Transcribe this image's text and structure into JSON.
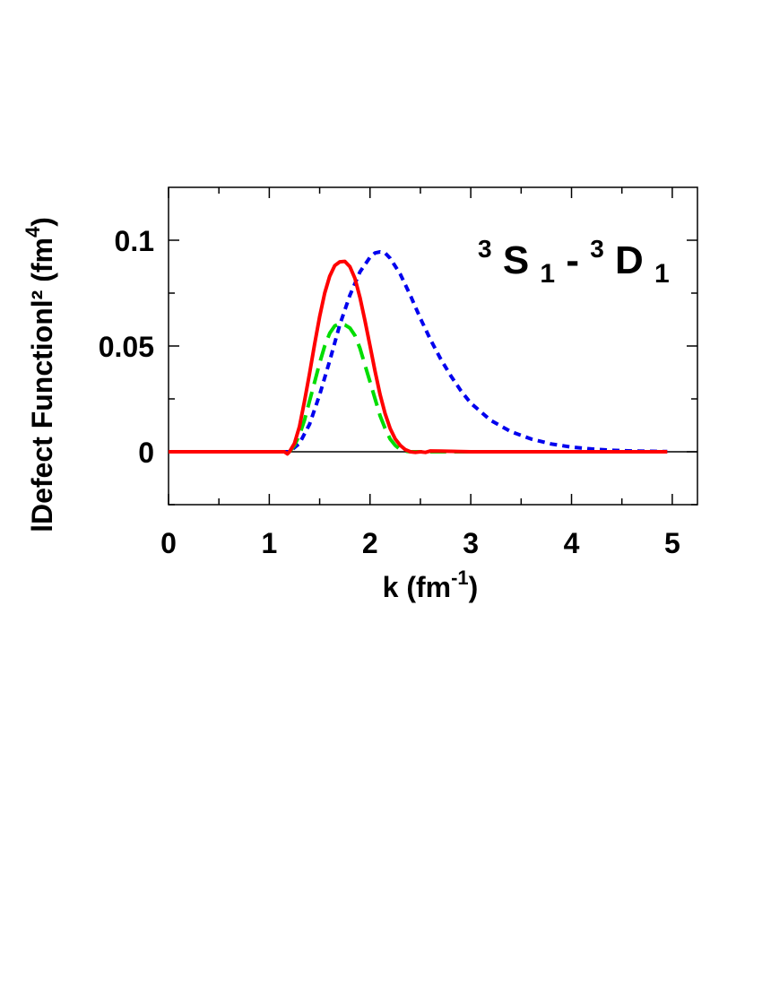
{
  "chart_data": {
    "type": "line",
    "annotation": {
      "parts": [
        {
          "text": "3",
          "sup": true
        },
        {
          "text": "S",
          "sup": false
        },
        {
          "text": "1",
          "sub": true
        },
        {
          "text": "-",
          "sup": false
        },
        {
          "text": "3",
          "sup": true
        },
        {
          "text": "D",
          "sup": false
        },
        {
          "text": "1",
          "sub": true
        }
      ]
    },
    "xlabel": {
      "main": "k (fm",
      "sup": "-1",
      "tail": ")"
    },
    "ylabel": {
      "main": "lDefect Functionl² (fm",
      "sup": "4",
      "tail": ")"
    },
    "xlim": [
      0,
      5.25
    ],
    "ylim": [
      -0.025,
      0.125
    ],
    "xticks": [
      0,
      1,
      2,
      3,
      4,
      5
    ],
    "xtick_labels": [
      "0",
      "1",
      "2",
      "3",
      "4",
      "5"
    ],
    "yticks": [
      0,
      0.05,
      0.1
    ],
    "ytick_labels": [
      "0",
      "0.05",
      "0.1"
    ],
    "zero_line": true,
    "grid": false,
    "series": [
      {
        "color": "#ff0000",
        "style": "solid",
        "x": [
          0,
          1.0,
          1.1,
          1.15,
          1.18,
          1.2,
          1.25,
          1.3,
          1.35,
          1.4,
          1.45,
          1.5,
          1.55,
          1.6,
          1.65,
          1.7,
          1.75,
          1.8,
          1.85,
          1.9,
          1.95,
          2.0,
          2.05,
          2.1,
          2.15,
          2.2,
          2.25,
          2.3,
          2.35,
          2.4,
          2.45,
          2.5,
          2.55,
          2.6,
          2.7,
          3.0,
          4.0,
          4.95
        ],
        "y": [
          0,
          0,
          0,
          0,
          -0.001,
          0.0,
          0.004,
          0.012,
          0.024,
          0.037,
          0.051,
          0.064,
          0.075,
          0.083,
          0.088,
          0.0898,
          0.09,
          0.0875,
          0.082,
          0.073,
          0.062,
          0.05,
          0.038,
          0.027,
          0.018,
          0.011,
          0.006,
          0.003,
          0.001,
          0.0,
          -0.0003,
          0.0,
          -0.0003,
          0.0004,
          0.0003,
          0,
          0,
          0
        ]
      },
      {
        "color": "#00dd00",
        "style": "long-dash",
        "x": [
          0,
          1.0,
          1.2,
          1.25,
          1.3,
          1.35,
          1.4,
          1.45,
          1.5,
          1.55,
          1.6,
          1.65,
          1.7,
          1.75,
          1.8,
          1.85,
          1.9,
          1.95,
          2.0,
          2.05,
          2.1,
          2.15,
          2.2,
          2.25,
          2.3,
          2.35,
          2.4,
          2.5,
          3.0,
          4.0,
          4.95
        ],
        "y": [
          0,
          0,
          0,
          0.003,
          0.008,
          0.015,
          0.024,
          0.033,
          0.042,
          0.05,
          0.056,
          0.0595,
          0.0605,
          0.06,
          0.0585,
          0.055,
          0.049,
          0.041,
          0.033,
          0.025,
          0.017,
          0.011,
          0.006,
          0.003,
          0.001,
          0.0003,
          0,
          0,
          0,
          0,
          0
        ]
      },
      {
        "color": "#0000ee",
        "style": "short-dash",
        "x": [
          0,
          1.0,
          1.2,
          1.3,
          1.4,
          1.5,
          1.6,
          1.7,
          1.8,
          1.9,
          2.0,
          2.05,
          2.1,
          2.15,
          2.2,
          2.3,
          2.4,
          2.5,
          2.6,
          2.7,
          2.8,
          2.9,
          3.0,
          3.2,
          3.4,
          3.6,
          3.8,
          4.0,
          4.2,
          4.4,
          4.6,
          4.8,
          4.95
        ],
        "y": [
          0,
          0,
          0,
          0.004,
          0.013,
          0.027,
          0.043,
          0.06,
          0.074,
          0.085,
          0.092,
          0.094,
          0.0945,
          0.094,
          0.0915,
          0.084,
          0.074,
          0.063,
          0.053,
          0.044,
          0.036,
          0.029,
          0.023,
          0.0148,
          0.0095,
          0.006,
          0.0037,
          0.0022,
          0.0013,
          0.0007,
          0.0004,
          0.0002,
          0.0001
        ]
      }
    ]
  }
}
